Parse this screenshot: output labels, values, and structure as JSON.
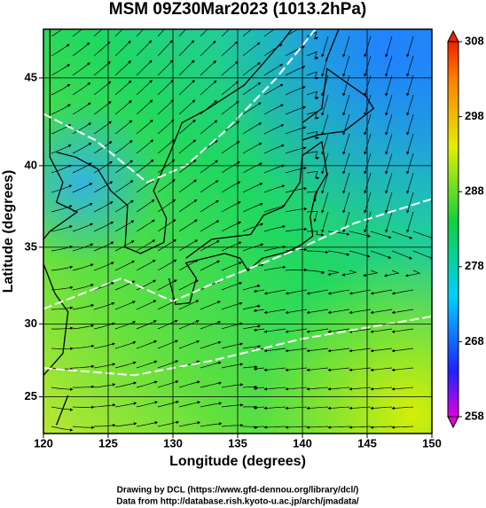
{
  "title": "MSM 09Z30Mar2023 (1013.2hPa)",
  "x_axis": {
    "label": "Longitude (degrees)",
    "lim": [
      120,
      150
    ],
    "ticks": [
      120,
      125,
      130,
      135,
      140,
      145,
      150
    ]
  },
  "y_axis": {
    "label": "Latitude (degrees)",
    "lim": [
      22.4,
      47.6
    ],
    "ticks": [
      25,
      30,
      35,
      40,
      45
    ],
    "projection": "mercator"
  },
  "colorbar": {
    "lim": [
      258,
      308
    ],
    "ticks": [
      258,
      268,
      278,
      288,
      298,
      308
    ]
  },
  "credits": [
    "Drawing by DCL (https://www.gfd-dennou.org/library/dcl/)",
    "Data from http://database.rish.kyoto-u.ac.jp/arch/jmadata/"
  ]
}
